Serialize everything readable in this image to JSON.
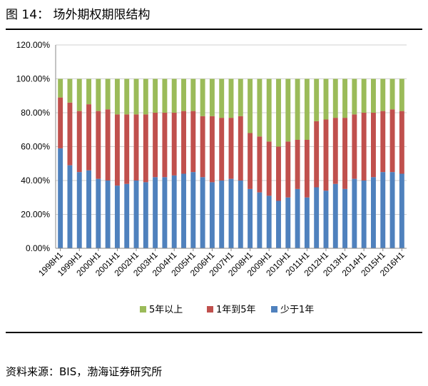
{
  "figure": {
    "title": "图 14：  场外期权期限结构",
    "source": "资料来源：BIS，渤海证券研究所"
  },
  "colors": {
    "short": "#4F81BD",
    "mid": "#C0504D",
    "long": "#9BBB59"
  },
  "chart_data": {
    "type": "bar",
    "stacked": true,
    "title": "",
    "xlabel": "",
    "ylabel": "",
    "ylim": [
      0,
      120
    ],
    "yticks": [
      "0.00%",
      "20.00%",
      "40.00%",
      "60.00%",
      "80.00%",
      "100.00%",
      "120.00%"
    ],
    "grid": true,
    "legend_position": "bottom",
    "categories": [
      "1998H1",
      "1998H2",
      "1999H1",
      "1999H2",
      "2000H1",
      "2000H2",
      "2001H1",
      "2001H2",
      "2002H1",
      "2002H2",
      "2003H1",
      "2003H2",
      "2004H1",
      "2004H2",
      "2005H1",
      "2005H2",
      "2006H1",
      "2006H2",
      "2007H1",
      "2007H2",
      "2008H1",
      "2008H2",
      "2009H1",
      "2009H2",
      "2010H1",
      "2010H2",
      "2011H1",
      "2011H2",
      "2012H1",
      "2012H2",
      "2013H1",
      "2013H2",
      "2014H1",
      "2014H2",
      "2015H1",
      "2015H2",
      "2016H1"
    ],
    "x_tick_labels": [
      "1998H1",
      "1999H1",
      "2000H1",
      "2001H1",
      "2002H1",
      "2003H1",
      "2004H1",
      "2005H1",
      "2006H1",
      "2007H1",
      "2008H1",
      "2009H1",
      "2010H1",
      "2011H1",
      "2012H1",
      "2013H1",
      "2014H1",
      "2015H1",
      "2016H1"
    ],
    "series": [
      {
        "name": "少于1年",
        "color": "#4F81BD",
        "values": [
          59,
          49,
          45,
          46,
          41,
          40,
          37,
          38,
          40,
          39,
          42,
          42,
          43,
          44,
          45,
          42,
          39,
          40,
          41,
          40,
          35,
          33,
          31,
          28,
          30,
          35,
          30,
          36,
          34,
          38,
          35,
          41,
          40,
          42,
          45,
          45,
          44
        ]
      },
      {
        "name": "1年到5年",
        "color": "#C0504D",
        "values": [
          30,
          37,
          36,
          39,
          40,
          42,
          42,
          41,
          39,
          40,
          38,
          38,
          37,
          37,
          36,
          36,
          39,
          37,
          36,
          38,
          33,
          33,
          32,
          32,
          33,
          29,
          34,
          39,
          42,
          39,
          42,
          38,
          40,
          38,
          36,
          37,
          37
        ]
      },
      {
        "name": "5年以上",
        "color": "#9BBB59",
        "values": [
          11,
          14,
          19,
          15,
          19,
          18,
          21,
          21,
          21,
          21,
          20,
          20,
          20,
          19,
          19,
          22,
          22,
          23,
          23,
          22,
          32,
          34,
          37,
          40,
          37,
          36,
          36,
          25,
          24,
          23,
          23,
          21,
          20,
          20,
          19,
          18,
          19
        ]
      }
    ],
    "legend_order": [
      "5年以上",
      "1年到5年",
      "少于1年"
    ]
  }
}
